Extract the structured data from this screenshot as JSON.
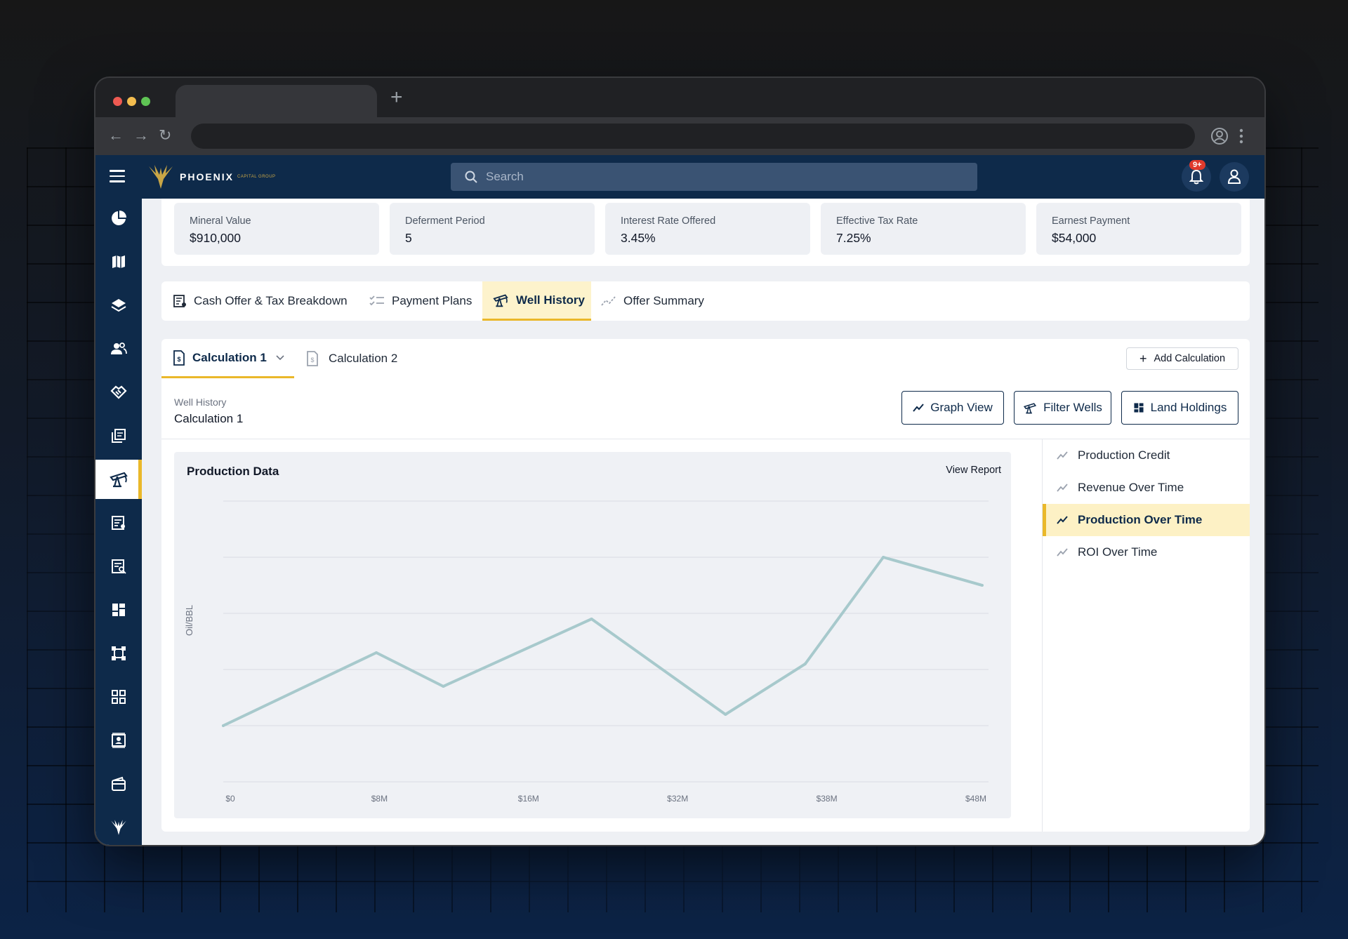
{
  "browser": {
    "dots": [
      "#ee5a52",
      "#f4bd4f",
      "#5fc454"
    ]
  },
  "topbar": {
    "brand": "PHOENIX",
    "brand_sub": "CAPITAL GROUP",
    "search_placeholder": "Search",
    "notification_count": "9+"
  },
  "kpis": [
    {
      "label": "Mineral Value",
      "value": "$910,000"
    },
    {
      "label": "Deferment Period",
      "value": "5"
    },
    {
      "label": "Interest Rate Offered",
      "value": "3.45%"
    },
    {
      "label": "Effective Tax Rate",
      "value": "7.25%"
    },
    {
      "label": "Earnest Payment",
      "value": "$54,000"
    }
  ],
  "main_tabs": [
    {
      "label": "Cash Offer & Tax Breakdown",
      "icon": "receipt-icon"
    },
    {
      "label": "Payment Plans",
      "icon": "checklist-icon"
    },
    {
      "label": "Well History",
      "icon": "oil-pump-icon",
      "active": true
    },
    {
      "label": "Offer Summary",
      "icon": "trend-icon"
    }
  ],
  "calc_tabs": [
    {
      "label": "Calculation 1",
      "active": true
    },
    {
      "label": "Calculation 2"
    }
  ],
  "add_calculation": "Add Calculation",
  "well_history": {
    "label": "Well History",
    "title": "Calculation 1"
  },
  "buttons": {
    "graph_view": "Graph View",
    "filter_wells": "Filter Wells",
    "land_holdings": "Land Holdings"
  },
  "chart_panel": {
    "title": "Production Data",
    "view_report": "View Report"
  },
  "charts_list": [
    {
      "label": "Production Credit"
    },
    {
      "label": "Revenue Over Time"
    },
    {
      "label": "Production Over Time",
      "active": true
    },
    {
      "label": "ROI Over Time"
    }
  ],
  "chart_data": {
    "type": "line",
    "title": "Production Data",
    "xlabel": "",
    "ylabel": "Oil/BBL",
    "x_tick_labels": [
      "$0",
      "$8M",
      "$16M",
      "$32M",
      "$38M",
      "$48M"
    ],
    "x": [
      0,
      9.6,
      13.8,
      23.1,
      31.5,
      36.5,
      41.4,
      47.6
    ],
    "values": [
      1.0,
      2.3,
      1.7,
      2.9,
      1.2,
      2.1,
      4.0,
      3.5
    ],
    "ylim": [
      0,
      5
    ],
    "grid": true,
    "color": "#a7c9cc"
  }
}
